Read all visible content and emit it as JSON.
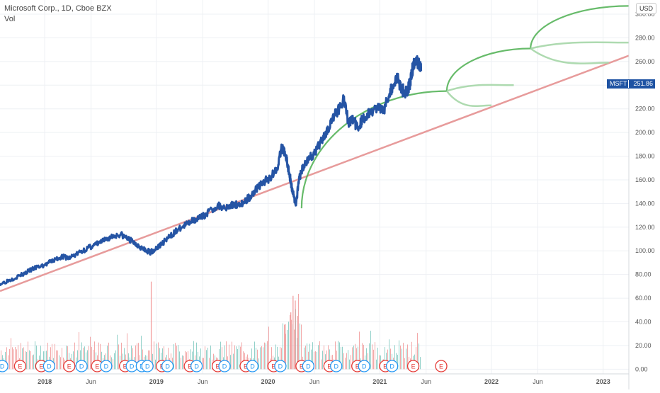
{
  "header": {
    "title": "Microsoft Corp., 1D, Cboe BZX",
    "sub_label": "Vol",
    "currency": "USD"
  },
  "price_tag": {
    "symbol": "MSFT",
    "value": "251.86"
  },
  "colors": {
    "price_line": "#2554a4",
    "trend_line": "#e79b9b",
    "arc": "#4caf50",
    "arc_light": "#a5d6a7",
    "vol_up": "#7fc9c0",
    "vol_down": "#f19999",
    "grid": "#eef0f4",
    "axis_text": "#555555",
    "earnings": "#e53935",
    "dividend": "#2196f3"
  },
  "chart_data": {
    "type": "line",
    "title": "Microsoft Corp., 1D, Cboe BZX",
    "ylim": [
      -4,
      312
    ],
    "y_ticks": [
      "0.00",
      "20.00",
      "40.00",
      "60.00",
      "80.00",
      "100.00",
      "120.00",
      "140.00",
      "160.00",
      "180.00",
      "200.00",
      "220.00",
      "240.00",
      "260.00",
      "280.00",
      "300.00"
    ],
    "y_tick_values": [
      0,
      20,
      40,
      60,
      80,
      100,
      120,
      140,
      160,
      180,
      200,
      220,
      240,
      260,
      280,
      300
    ],
    "xlim": [
      2017.6,
      2023.23
    ],
    "x_ticks": [
      {
        "label": "2018",
        "value": 2018.0,
        "bold": true
      },
      {
        "label": "Jun",
        "value": 2018.415,
        "bold": false
      },
      {
        "label": "2019",
        "value": 2019.0,
        "bold": true
      },
      {
        "label": "Jun",
        "value": 2019.415,
        "bold": false
      },
      {
        "label": "2020",
        "value": 2020.0,
        "bold": true
      },
      {
        "label": "Jun",
        "value": 2020.415,
        "bold": false
      },
      {
        "label": "2021",
        "value": 2021.0,
        "bold": true
      },
      {
        "label": "Jun",
        "value": 2021.415,
        "bold": false
      },
      {
        "label": "2022",
        "value": 2022.0,
        "bold": true
      },
      {
        "label": "Jun",
        "value": 2022.415,
        "bold": false
      },
      {
        "label": "2023",
        "value": 2023.0,
        "bold": true
      }
    ],
    "series": [
      {
        "name": "MSFT",
        "x": [
          2017.6,
          2017.7,
          2017.8,
          2017.9,
          2018.0,
          2018.08,
          2018.15,
          2018.22,
          2018.3,
          2018.38,
          2018.45,
          2018.52,
          2018.6,
          2018.68,
          2018.75,
          2018.8,
          2018.85,
          2018.9,
          2018.95,
          2019.0,
          2019.06,
          2019.12,
          2019.18,
          2019.25,
          2019.32,
          2019.4,
          2019.47,
          2019.55,
          2019.62,
          2019.7,
          2019.77,
          2019.83,
          2019.9,
          2019.96,
          2020.02,
          2020.08,
          2020.12,
          2020.15,
          2020.18,
          2020.2,
          2020.22,
          2020.25,
          2020.28,
          2020.32,
          2020.36,
          2020.42,
          2020.46,
          2020.5,
          2020.53,
          2020.58,
          2020.63,
          2020.68,
          2020.72,
          2020.76,
          2020.8,
          2020.84,
          2020.88,
          2020.93,
          2021.0,
          2021.04,
          2021.08,
          2021.12,
          2021.16,
          2021.2,
          2021.24,
          2021.27,
          2021.29,
          2021.32,
          2021.35,
          2021.37
        ],
        "y": [
          72,
          76,
          80,
          85,
          88,
          92,
          95,
          94,
          98,
          102,
          105,
          108,
          112,
          114,
          110,
          107,
          104,
          100,
          99,
          102,
          107,
          112,
          117,
          121,
          126,
          128,
          133,
          138,
          137,
          139,
          140,
          145,
          153,
          158,
          162,
          170,
          186,
          184,
          170,
          160,
          150,
          140,
          162,
          172,
          178,
          182,
          190,
          198,
          202,
          212,
          220,
          228,
          208,
          212,
          204,
          210,
          214,
          218,
          222,
          220,
          232,
          240,
          246,
          236,
          234,
          242,
          252,
          262,
          258,
          252
        ]
      }
    ],
    "volume": {
      "unit_scale": 1,
      "events": [
        {
          "x": 2020.15,
          "v": 38
        },
        {
          "x": 2020.2,
          "v": 48
        },
        {
          "x": 2020.22,
          "v": 62
        },
        {
          "x": 2020.24,
          "v": 58
        },
        {
          "x": 2020.26,
          "v": 45
        },
        {
          "x": 2018.95,
          "v": 74
        }
      ]
    },
    "trend_line": {
      "x": [
        2017.6,
        2023.23
      ],
      "y": [
        66,
        265
      ]
    },
    "arcs": [
      {
        "x1": 2020.3,
        "y1": 136,
        "x2": 2021.6,
        "y2": 235,
        "kind": "main"
      },
      {
        "x1": 2021.6,
        "y1": 235,
        "x2": 2022.35,
        "y2": 271,
        "kind": "main"
      },
      {
        "x1": 2022.35,
        "y1": 271,
        "x2": 2023.23,
        "y2": 307,
        "kind": "main"
      },
      {
        "x1": 2021.6,
        "y1": 235,
        "x2": 2022.2,
        "y2": 240,
        "kind": "flat"
      },
      {
        "x1": 2022.35,
        "y1": 271,
        "x2": 2023.23,
        "y2": 276,
        "kind": "flat"
      },
      {
        "x1": 2021.6,
        "y1": 235,
        "x2": 2022.0,
        "y2": 223,
        "kind": "drop"
      },
      {
        "x1": 2022.35,
        "y1": 271,
        "x2": 2023.05,
        "y2": 259,
        "kind": "drop"
      }
    ],
    "markers": [
      {
        "x": 2017.62,
        "type": "D"
      },
      {
        "x": 2017.78,
        "type": "E"
      },
      {
        "x": 2017.97,
        "type": "E"
      },
      {
        "x": 2018.04,
        "type": "D"
      },
      {
        "x": 2018.22,
        "type": "E"
      },
      {
        "x": 2018.33,
        "type": "D"
      },
      {
        "x": 2018.47,
        "type": "E"
      },
      {
        "x": 2018.55,
        "type": "D"
      },
      {
        "x": 2018.72,
        "type": "E"
      },
      {
        "x": 2018.78,
        "type": "D"
      },
      {
        "x": 2018.87,
        "type": "D"
      },
      {
        "x": 2018.92,
        "type": "D"
      },
      {
        "x": 2019.05,
        "type": "E"
      },
      {
        "x": 2019.1,
        "type": "D"
      },
      {
        "x": 2019.3,
        "type": "E"
      },
      {
        "x": 2019.36,
        "type": "D"
      },
      {
        "x": 2019.55,
        "type": "E"
      },
      {
        "x": 2019.61,
        "type": "D"
      },
      {
        "x": 2019.8,
        "type": "E"
      },
      {
        "x": 2019.86,
        "type": "D"
      },
      {
        "x": 2020.05,
        "type": "E"
      },
      {
        "x": 2020.11,
        "type": "D"
      },
      {
        "x": 2020.3,
        "type": "E"
      },
      {
        "x": 2020.36,
        "type": "D"
      },
      {
        "x": 2020.55,
        "type": "E"
      },
      {
        "x": 2020.61,
        "type": "D"
      },
      {
        "x": 2020.8,
        "type": "E"
      },
      {
        "x": 2020.86,
        "type": "D"
      },
      {
        "x": 2021.05,
        "type": "E"
      },
      {
        "x": 2021.11,
        "type": "D"
      },
      {
        "x": 2021.3,
        "type": "E"
      },
      {
        "x": 2021.55,
        "type": "E"
      }
    ]
  }
}
